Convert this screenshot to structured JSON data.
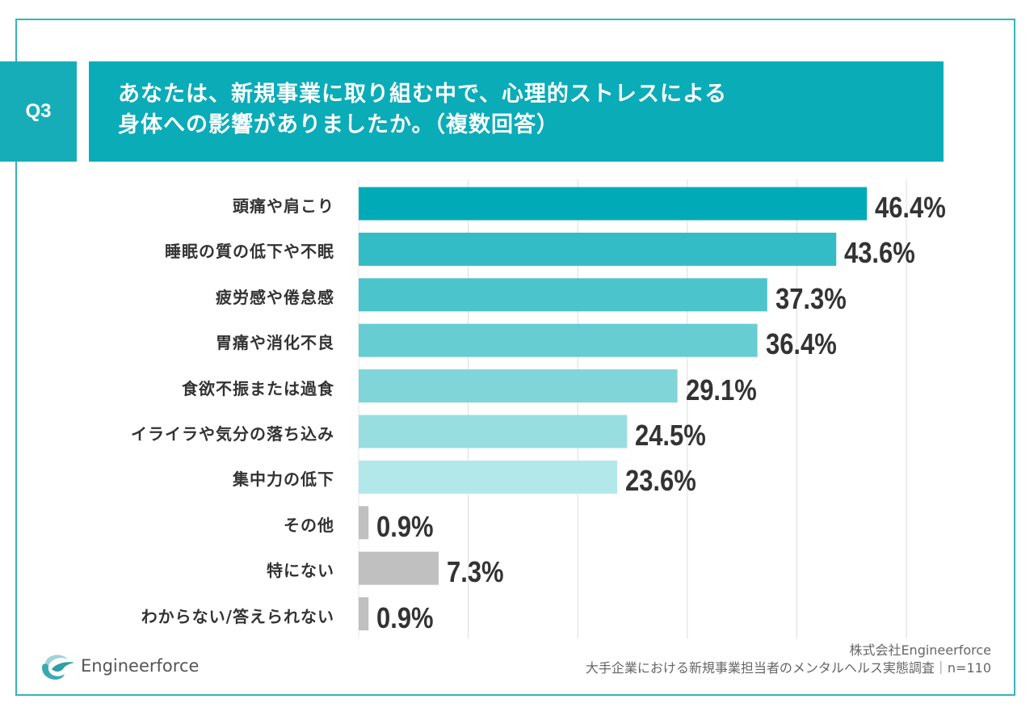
{
  "question": {
    "number": "Q3",
    "title_line1": "あなたは、新規事業に取り組む中で、心理的ストレスによる",
    "title_line2": "身体への影響がありましたか。（複数回答）"
  },
  "chart_data": {
    "type": "bar",
    "orientation": "horizontal",
    "title": "あなたは、新規事業に取り組む中で、心理的ストレスによる身体への影響がありましたか。（複数回答）",
    "xlabel": "",
    "ylabel": "",
    "xlim": [
      0,
      50
    ],
    "grid": true,
    "gridlines": [
      10,
      20,
      30,
      40,
      50
    ],
    "categories": [
      "頭痛や肩こり",
      "睡眠の質の低下や不眠",
      "疲労感や倦怠感",
      "胃痛や消化不良",
      "食欲不振または過食",
      "イライラや気分の落ち込み",
      "集中力の低下",
      "その他",
      "特にない",
      "わからない/答えられない"
    ],
    "values": [
      46.4,
      43.6,
      37.3,
      36.4,
      29.1,
      24.5,
      23.6,
      0.9,
      7.3,
      0.9
    ],
    "value_labels": [
      "46.4%",
      "43.6%",
      "37.3%",
      "36.4%",
      "29.1%",
      "24.5%",
      "23.6%",
      "0.9%",
      "7.3%",
      "0.9%"
    ],
    "colors": [
      "#00abb7",
      "#33bcc6",
      "#4cc4cc",
      "#66cdd3",
      "#80d5d9",
      "#98dee1",
      "#b2e8ea",
      "#c0c0c0",
      "#c0c0c0",
      "#c0c0c0"
    ],
    "unit": "%"
  },
  "footer": {
    "logo_text": "Engineerforce",
    "company": "株式会社Engineerforce",
    "survey": "大手企業における新規事業担当者のメンタルヘルス実態調査｜n=110"
  },
  "colors": {
    "accent": "#0aacb8",
    "frame": "#35b4bd",
    "grid": "#dddddd",
    "text": "#333333"
  }
}
